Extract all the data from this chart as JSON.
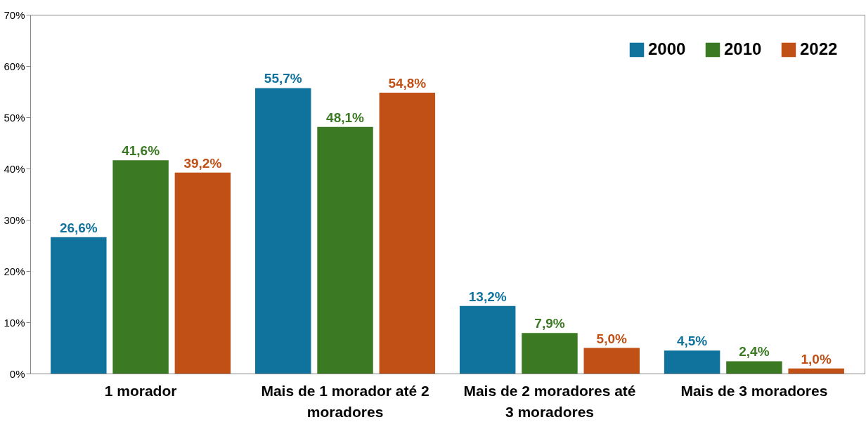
{
  "chart_data": {
    "type": "bar",
    "categories": [
      "1 morador",
      "Mais de 1 morador até 2 moradores",
      "Mais de 2 moradores até 3 moradores",
      "Mais de 3 moradores"
    ],
    "series": [
      {
        "name": "2000",
        "color": "#10739e",
        "values": [
          26.6,
          55.7,
          13.2,
          4.5
        ],
        "value_labels": [
          "26,6%",
          "55,7%",
          "13,2%",
          "4,5%"
        ]
      },
      {
        "name": "2010",
        "color": "#3b7a23",
        "values": [
          41.6,
          48.1,
          7.9,
          2.4
        ],
        "value_labels": [
          "41,6%",
          "48,1%",
          "7,9%",
          "2,4%"
        ]
      },
      {
        "name": "2022",
        "color": "#c05016",
        "values": [
          39.2,
          54.8,
          5.0,
          1.0
        ],
        "value_labels": [
          "39,2%",
          "54,8%",
          "5,0%",
          "1,0%"
        ]
      }
    ],
    "ylim": [
      0,
      70
    ],
    "yticks": [
      {
        "value": 0,
        "label": "0%"
      },
      {
        "value": 10,
        "label": "10%"
      },
      {
        "value": 20,
        "label": "20%"
      },
      {
        "value": 30,
        "label": "30%"
      },
      {
        "value": 40,
        "label": "40%"
      },
      {
        "value": 50,
        "label": "50%"
      },
      {
        "value": 60,
        "label": "60%"
      },
      {
        "value": 70,
        "label": "70%"
      }
    ],
    "grid": false,
    "legend": "top right"
  }
}
